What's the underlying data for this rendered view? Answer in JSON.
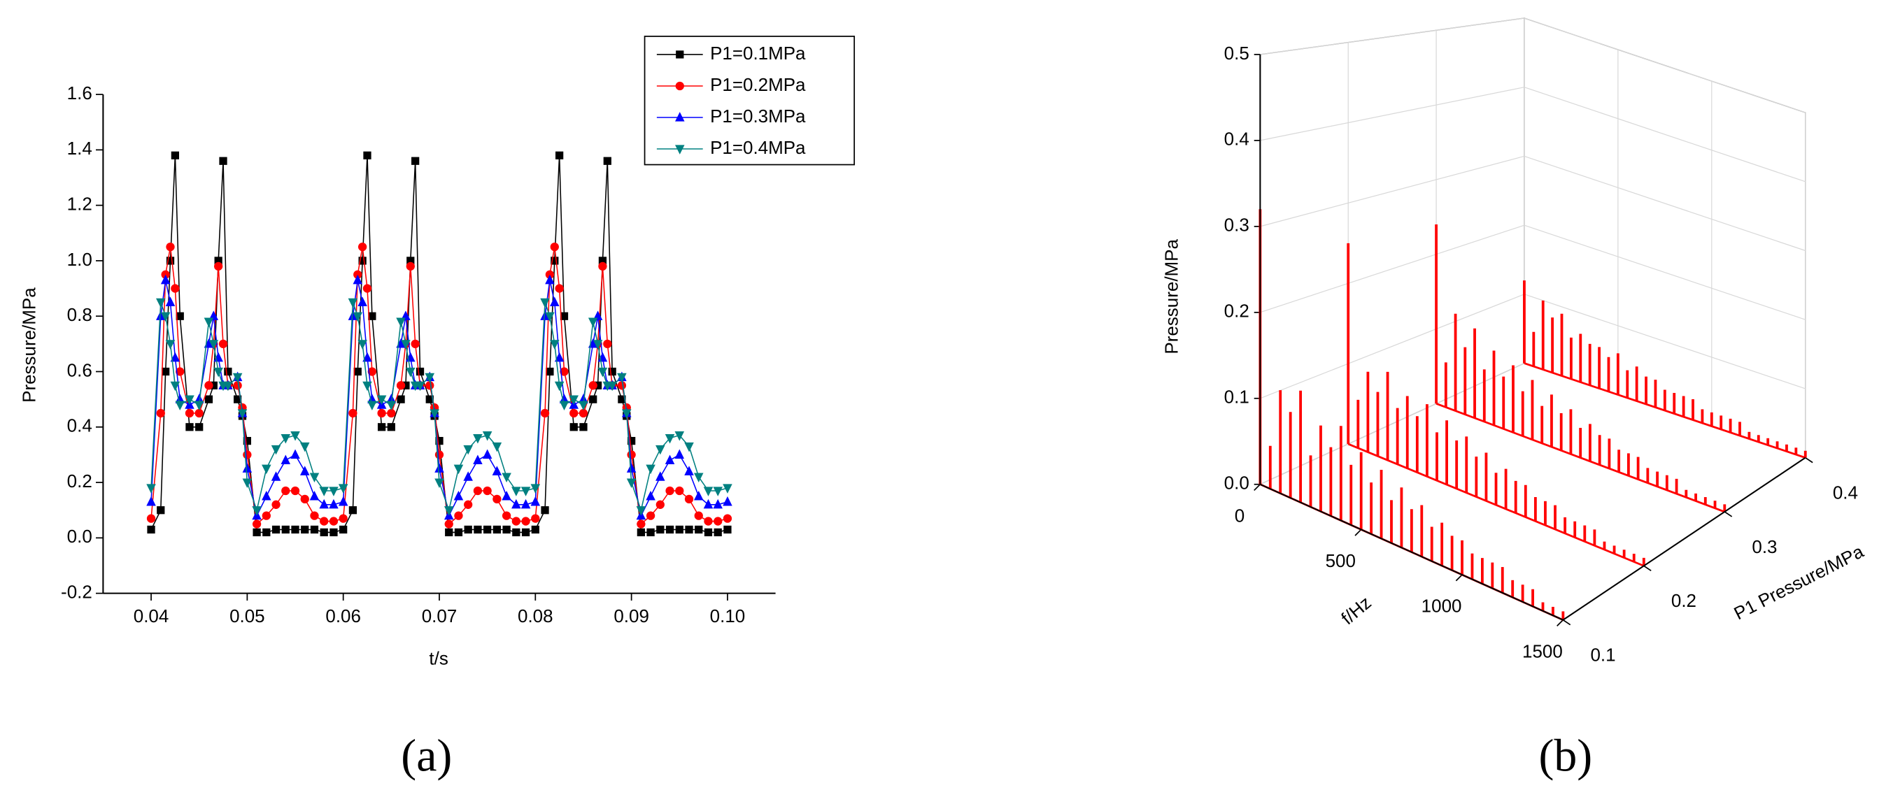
{
  "chart_data": [
    {
      "type": "line",
      "panel_label": "(a)",
      "x_label": "t/s",
      "y_label": "Pressure/MPa",
      "xlim": [
        0.035,
        0.105
      ],
      "xticks": [
        0.04,
        0.05,
        0.06,
        0.07,
        0.08,
        0.09,
        {
          "value": 0.1,
          "label": "0.10"
        }
      ],
      "ylim": [
        -0.2,
        1.6
      ],
      "yticks": [
        -0.2,
        {
          "value": 0,
          "label": "0.0"
        },
        0.2,
        0.4,
        0.6,
        0.8,
        {
          "value": 1,
          "label": "1.0"
        },
        1.2,
        1.4,
        1.6
      ],
      "legend": "top-right",
      "x": [
        0.04,
        0.041,
        0.0415,
        0.042,
        0.0425,
        0.043,
        0.044,
        0.045,
        0.046,
        0.0465,
        0.047,
        0.0475,
        0.048,
        0.049,
        0.0495,
        0.05,
        0.051,
        0.052,
        0.053,
        0.054,
        0.055,
        0.056,
        0.057,
        0.058,
        0.059,
        0.06,
        0.061,
        0.0615,
        0.062,
        0.0625,
        0.063,
        0.064,
        0.065,
        0.066,
        0.0665,
        0.067,
        0.0675,
        0.068,
        0.069,
        0.0695,
        0.07,
        0.071,
        0.072,
        0.073,
        0.074,
        0.075,
        0.076,
        0.077,
        0.078,
        0.079,
        0.08,
        0.081,
        0.0815,
        0.082,
        0.0825,
        0.083,
        0.084,
        0.085,
        0.086,
        0.0865,
        0.087,
        0.0875,
        0.088,
        0.089,
        0.0895,
        0.09,
        0.091,
        0.092,
        0.093,
        0.094,
        0.095,
        0.096,
        0.097,
        0.098,
        0.099,
        0.1
      ],
      "series": [
        {
          "name": "P1=0.1MPa",
          "color": "#000000",
          "marker": "square",
          "values": [
            0.03,
            0.1,
            0.6,
            1.0,
            1.38,
            0.8,
            0.4,
            0.4,
            0.5,
            0.55,
            1.0,
            1.36,
            0.6,
            0.5,
            0.44,
            0.35,
            0.02,
            0.02,
            0.03,
            0.03,
            0.03,
            0.03,
            0.03,
            0.02,
            0.02,
            0.03,
            0.1,
            0.6,
            1.0,
            1.38,
            0.8,
            0.4,
            0.4,
            0.5,
            0.55,
            1.0,
            1.36,
            0.6,
            0.5,
            0.44,
            0.35,
            0.02,
            0.02,
            0.03,
            0.03,
            0.03,
            0.03,
            0.03,
            0.02,
            0.02,
            0.03,
            0.1,
            0.6,
            1.0,
            1.38,
            0.8,
            0.4,
            0.4,
            0.5,
            0.55,
            1.0,
            1.36,
            0.6,
            0.5,
            0.44,
            0.35,
            0.02,
            0.02,
            0.03,
            0.03,
            0.03,
            0.03,
            0.03,
            0.02,
            0.02,
            0.03
          ]
        },
        {
          "name": "P1=0.2MPa",
          "color": "#ff0000",
          "marker": "circle",
          "values": [
            0.07,
            0.45,
            0.95,
            1.05,
            0.9,
            0.6,
            0.45,
            0.45,
            0.55,
            0.7,
            0.98,
            0.7,
            0.55,
            0.55,
            0.47,
            0.3,
            0.05,
            0.08,
            0.12,
            0.17,
            0.17,
            0.14,
            0.08,
            0.06,
            0.06,
            0.07,
            0.45,
            0.95,
            1.05,
            0.9,
            0.6,
            0.45,
            0.45,
            0.55,
            0.7,
            0.98,
            0.7,
            0.55,
            0.55,
            0.47,
            0.3,
            0.05,
            0.08,
            0.12,
            0.17,
            0.17,
            0.14,
            0.08,
            0.06,
            0.06,
            0.07,
            0.45,
            0.95,
            1.05,
            0.9,
            0.6,
            0.45,
            0.45,
            0.55,
            0.7,
            0.98,
            0.7,
            0.55,
            0.55,
            0.47,
            0.3,
            0.05,
            0.08,
            0.12,
            0.17,
            0.17,
            0.14,
            0.08,
            0.06,
            0.06,
            0.07
          ]
        },
        {
          "name": "P1=0.3MPa",
          "color": "#0000ff",
          "marker": "triangle-up",
          "values": [
            0.13,
            0.8,
            0.93,
            0.85,
            0.65,
            0.5,
            0.48,
            0.5,
            0.7,
            0.8,
            0.65,
            0.55,
            0.55,
            0.58,
            0.45,
            0.25,
            0.08,
            0.15,
            0.22,
            0.28,
            0.3,
            0.24,
            0.15,
            0.12,
            0.12,
            0.13,
            0.8,
            0.93,
            0.85,
            0.65,
            0.5,
            0.48,
            0.5,
            0.7,
            0.8,
            0.65,
            0.55,
            0.55,
            0.58,
            0.45,
            0.25,
            0.08,
            0.15,
            0.22,
            0.28,
            0.3,
            0.24,
            0.15,
            0.12,
            0.12,
            0.13,
            0.8,
            0.93,
            0.85,
            0.65,
            0.5,
            0.48,
            0.5,
            0.7,
            0.8,
            0.65,
            0.55,
            0.55,
            0.58,
            0.45,
            0.25,
            0.08,
            0.15,
            0.22,
            0.28,
            0.3,
            0.24,
            0.15,
            0.12,
            0.12,
            0.13
          ]
        },
        {
          "name": "P1=0.4MPa",
          "color": "#008080",
          "marker": "triangle-down",
          "values": [
            0.18,
            0.85,
            0.8,
            0.7,
            0.55,
            0.48,
            0.5,
            0.48,
            0.78,
            0.7,
            0.6,
            0.55,
            0.55,
            0.58,
            0.45,
            0.2,
            0.1,
            0.25,
            0.32,
            0.36,
            0.37,
            0.33,
            0.22,
            0.17,
            0.17,
            0.18,
            0.85,
            0.8,
            0.7,
            0.55,
            0.48,
            0.5,
            0.48,
            0.78,
            0.7,
            0.6,
            0.55,
            0.55,
            0.58,
            0.45,
            0.2,
            0.1,
            0.25,
            0.32,
            0.36,
            0.37,
            0.33,
            0.22,
            0.17,
            0.17,
            0.18,
            0.85,
            0.8,
            0.7,
            0.55,
            0.48,
            0.5,
            0.48,
            0.78,
            0.7,
            0.6,
            0.55,
            0.55,
            0.58,
            0.45,
            0.2,
            0.1,
            0.25,
            0.32,
            0.36,
            0.37,
            0.33,
            0.22,
            0.17,
            0.17,
            0.18
          ]
        }
      ]
    },
    {
      "type": "waterfall3d",
      "panel_label": "(b)",
      "x_label": "f/Hz",
      "y_label": "Pressure/MPa",
      "depth_label": "P1 Pressure/MPa",
      "xlim": [
        0,
        1500
      ],
      "xticks": [
        0,
        500,
        1000,
        1500
      ],
      "ylim": [
        0,
        0.5
      ],
      "yticks": [
        {
          "value": 0,
          "label": "0.0"
        },
        0.1,
        0.2,
        0.3,
        0.4,
        0.5
      ],
      "depth_lim": [
        0.1,
        0.4
      ],
      "depth_ticks": [
        0.1,
        0.2,
        0.3,
        0.4
      ],
      "grid": true,
      "x": [
        0,
        50,
        100,
        150,
        200,
        250,
        300,
        350,
        400,
        450,
        500,
        550,
        600,
        650,
        700,
        750,
        800,
        850,
        900,
        950,
        1000,
        1050,
        1100,
        1150,
        1200,
        1250,
        1300,
        1350,
        1400,
        1450,
        1500
      ],
      "depth": [
        0.1,
        0.2,
        0.3,
        0.4
      ],
      "series": [
        {
          "color": "#ff0000",
          "values": [
            0.32,
            0.05,
            0.12,
            0.1,
            0.13,
            0.06,
            0.1,
            0.08,
            0.11,
            0.07,
            0.09,
            0.06,
            0.08,
            0.05,
            0.07,
            0.05,
            0.06,
            0.04,
            0.05,
            0.04,
            0.04,
            0.03,
            0.03,
            0.03,
            0.03,
            0.02,
            0.02,
            0.02,
            0.01,
            0.01,
            0.01
          ]
        },
        {
          "color": "#ff0000",
          "values": [
            0.25,
            0.06,
            0.1,
            0.08,
            0.11,
            0.07,
            0.09,
            0.07,
            0.09,
            0.06,
            0.08,
            0.06,
            0.07,
            0.05,
            0.06,
            0.04,
            0.05,
            0.04,
            0.04,
            0.03,
            0.03,
            0.03,
            0.02,
            0.02,
            0.02,
            0.02,
            0.01,
            0.01,
            0.01,
            0.01,
            0.01
          ]
        },
        {
          "color": "#ff0000",
          "values": [
            0.24,
            0.06,
            0.13,
            0.09,
            0.12,
            0.07,
            0.1,
            0.07,
            0.09,
            0.06,
            0.08,
            0.05,
            0.07,
            0.05,
            0.06,
            0.04,
            0.05,
            0.04,
            0.04,
            0.03,
            0.03,
            0.03,
            0.02,
            0.02,
            0.02,
            0.02,
            0.01,
            0.01,
            0.01,
            0.01,
            0.01
          ]
        },
        {
          "color": "#ff0000",
          "values": [
            0.12,
            0.05,
            0.1,
            0.08,
            0.09,
            0.06,
            0.07,
            0.06,
            0.06,
            0.05,
            0.06,
            0.04,
            0.05,
            0.04,
            0.04,
            0.03,
            0.03,
            0.03,
            0.03,
            0.02,
            0.02,
            0.02,
            0.02,
            0.02,
            0.01,
            0.01,
            0.01,
            0.01,
            0.01,
            0.01,
            0.01
          ]
        }
      ]
    }
  ]
}
